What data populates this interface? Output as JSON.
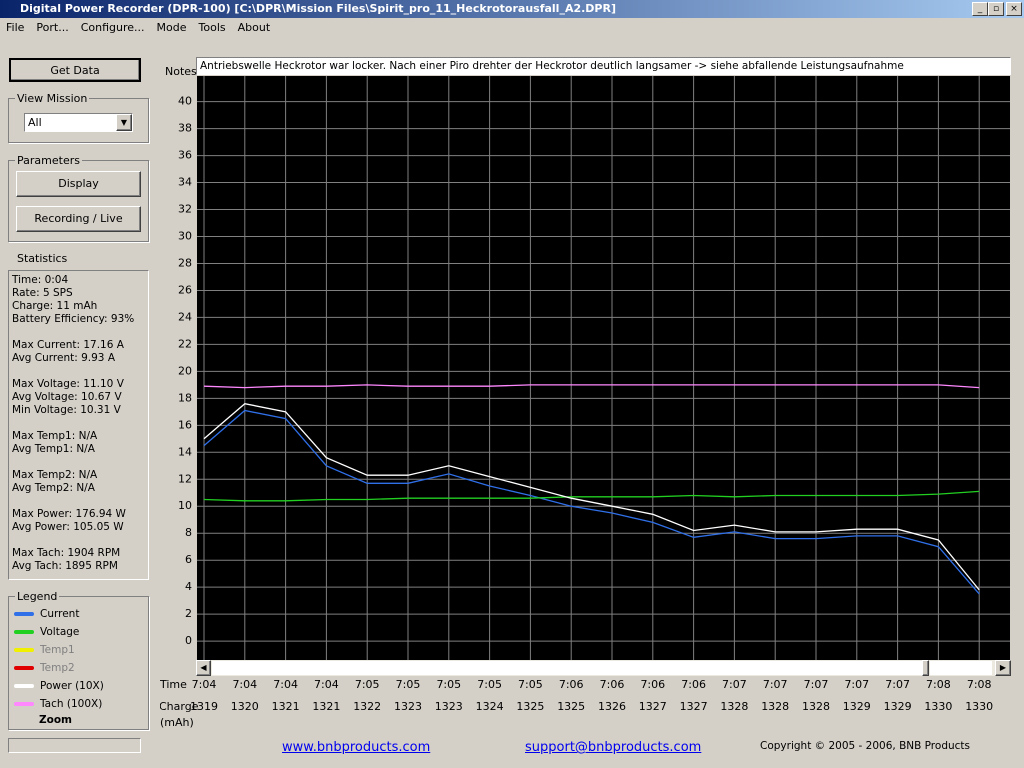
{
  "window": {
    "title": "Digital Power Recorder (DPR-100) [C:\\DPR\\Mission Files\\Spirit_pro_11_Heckrotorausfall_A2.DPR]"
  },
  "menu": [
    "File",
    "Port...",
    "Configure...",
    "Mode",
    "Tools",
    "About"
  ],
  "get_data": "Get Data",
  "view_mission": {
    "label": "View Mission",
    "value": "All"
  },
  "parameters": {
    "label": "Parameters",
    "display": "Display",
    "recording": "Recording / Live"
  },
  "statistics": {
    "label": "Statistics",
    "groups": [
      [
        "Time: 0:04",
        "Rate: 5 SPS",
        "Charge: 11 mAh",
        "Battery Efficiency: 93%"
      ],
      [
        "Max Current: 17.16 A",
        "Avg Current: 9.93 A"
      ],
      [
        "Max Voltage: 11.10 V",
        "Avg Voltage: 10.67 V",
        "Min Voltage: 10.31 V"
      ],
      [
        "Max Temp1: N/A",
        "Avg Temp1: N/A"
      ],
      [
        "Max Temp2: N/A",
        "Avg Temp2: N/A"
      ],
      [
        "Max Power: 176.94 W",
        "Avg Power: 105.05 W"
      ],
      [
        "Max Tach: 1904 RPM",
        "Avg Tach: 1895 RPM"
      ]
    ]
  },
  "legend_label": "Legend",
  "zoom": "Zoom",
  "notes": {
    "label": "Notes",
    "text": "Antriebswelle Heckrotor war locker. Nach einer Piro drehter der Heckrotor deutlich langsamer -> siehe abfallende Leistungsaufnahme"
  },
  "chart_data": {
    "type": "line",
    "x_label": "Time",
    "charge_label": "Charge",
    "charge_unit": "(mAh)",
    "categories": [
      "7:04",
      "7:04",
      "7:04",
      "7:04",
      "7:05",
      "7:05",
      "7:05",
      "7:05",
      "7:05",
      "7:06",
      "7:06",
      "7:06",
      "7:06",
      "7:07",
      "7:07",
      "7:07",
      "7:07",
      "7:07",
      "7:08",
      "7:08"
    ],
    "charge": [
      1319,
      1320,
      1321,
      1321,
      1322,
      1323,
      1323,
      1324,
      1325,
      1325,
      1326,
      1327,
      1327,
      1328,
      1328,
      1328,
      1329,
      1329,
      1330,
      1330
    ],
    "ylim": [
      -1.4,
      41.9
    ],
    "yticks": [
      0,
      2,
      4,
      6,
      8,
      10,
      12,
      14,
      16,
      18,
      20,
      22,
      24,
      26,
      28,
      30,
      32,
      34,
      36,
      38,
      40
    ],
    "grid": true,
    "series": [
      {
        "name": "Current",
        "color": "#2f6fe8",
        "enabled": true,
        "values": [
          14.5,
          17.1,
          16.5,
          13.0,
          11.7,
          11.7,
          12.4,
          11.5,
          10.8,
          10.0,
          9.5,
          8.8,
          7.7,
          8.1,
          7.6,
          7.6,
          7.8,
          7.8,
          7.0,
          3.5
        ]
      },
      {
        "name": "Voltage",
        "color": "#22d022",
        "enabled": true,
        "values": [
          10.5,
          10.4,
          10.4,
          10.5,
          10.5,
          10.6,
          10.6,
          10.6,
          10.6,
          10.7,
          10.7,
          10.7,
          10.8,
          10.7,
          10.8,
          10.8,
          10.8,
          10.8,
          10.9,
          11.1
        ]
      },
      {
        "name": "Temp1",
        "color": "#f0f000",
        "enabled": false,
        "values": [
          null,
          null,
          null,
          null,
          null,
          null,
          null,
          null,
          null,
          null,
          null,
          null,
          null,
          null,
          null,
          null,
          null,
          null,
          null,
          null
        ]
      },
      {
        "name": "Temp2",
        "color": "#e00000",
        "enabled": false,
        "values": [
          null,
          null,
          null,
          null,
          null,
          null,
          null,
          null,
          null,
          null,
          null,
          null,
          null,
          null,
          null,
          null,
          null,
          null,
          null,
          null
        ]
      },
      {
        "name": "Power (10X)",
        "color": "#ffffff",
        "enabled": true,
        "values": [
          15.0,
          17.6,
          17.0,
          13.6,
          12.3,
          12.3,
          13.0,
          12.2,
          11.4,
          10.6,
          10.0,
          9.4,
          8.2,
          8.6,
          8.1,
          8.1,
          8.3,
          8.3,
          7.5,
          3.8
        ]
      },
      {
        "name": "Tach   (100X)",
        "color": "#ff88ff",
        "enabled": true,
        "values": [
          18.9,
          18.8,
          18.9,
          18.9,
          19.0,
          18.9,
          18.9,
          18.9,
          19.0,
          19.0,
          19.0,
          19.0,
          19.0,
          19.0,
          19.0,
          19.0,
          19.0,
          19.0,
          19.0,
          18.8
        ]
      }
    ]
  },
  "footer": {
    "site": "www.bnbproducts.com",
    "support": "support@bnbproducts.com",
    "copyright": "Copyright © 2005 - 2006, BNB Products"
  }
}
